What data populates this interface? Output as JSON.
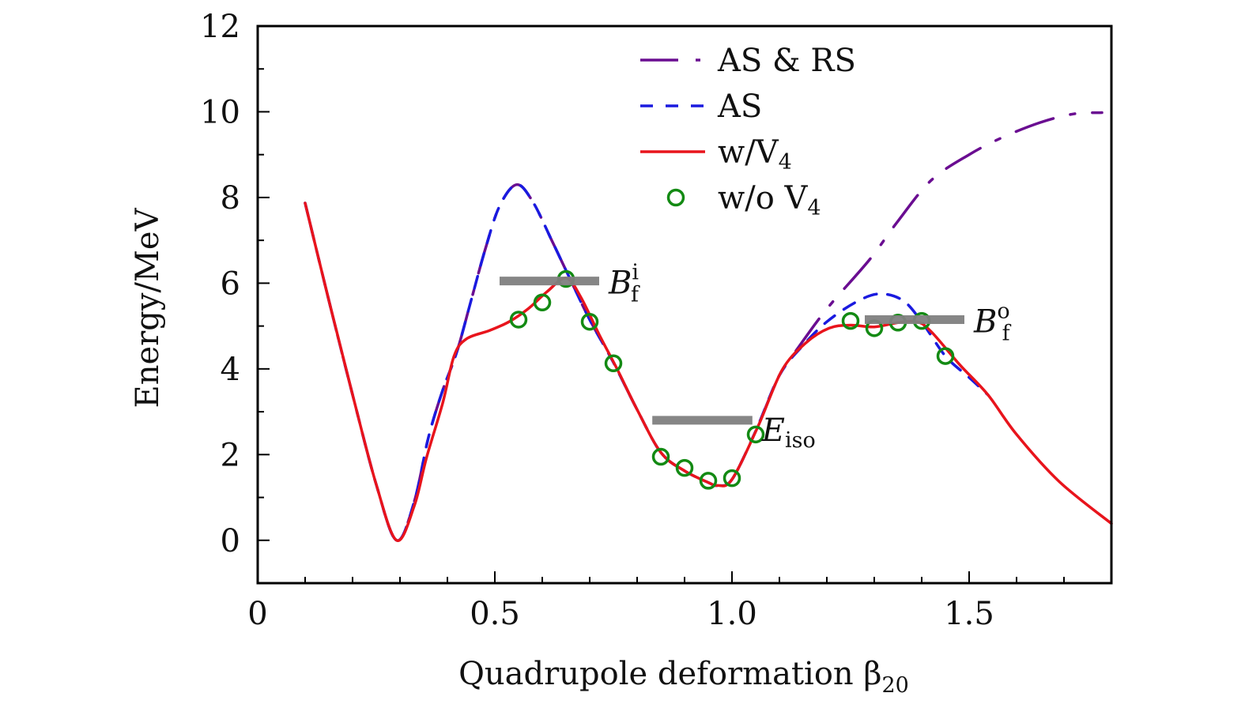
{
  "chart_data": {
    "type": "line",
    "title": "",
    "xlabel": "Quadrupole deformation β",
    "xlabel_subscript": "20",
    "ylabel": "Energy/MeV",
    "xlim": [
      0,
      1.8
    ],
    "ylim": [
      -1,
      12
    ],
    "xticks": [
      0,
      0.5,
      1.0,
      1.5
    ],
    "xtick_labels": [
      "0",
      "0.5",
      "1.0",
      "1.5"
    ],
    "x_minor_step": 0.1,
    "yticks": [
      0,
      2,
      4,
      6,
      8,
      10,
      12
    ],
    "ytick_labels": [
      "0",
      "2",
      "4",
      "6",
      "8",
      "10",
      "12"
    ],
    "y_minor_step": 1,
    "grid": false,
    "legend_position": "top-right",
    "series": [
      {
        "name": "AS & RS",
        "style": "dash-dot",
        "color": "#6a0d91",
        "points": [
          [
            0.1,
            7.87
          ],
          [
            0.15,
            5.6
          ],
          [
            0.2,
            3.4
          ],
          [
            0.25,
            1.3
          ],
          [
            0.293,
            0.0
          ],
          [
            0.33,
            0.9
          ],
          [
            0.36,
            2.4
          ],
          [
            0.39,
            3.5
          ],
          [
            0.42,
            4.4
          ],
          [
            0.45,
            5.6
          ],
          [
            0.48,
            6.8
          ],
          [
            0.51,
            7.8
          ],
          [
            0.546,
            8.3
          ],
          [
            0.58,
            7.9
          ],
          [
            0.62,
            7.0
          ],
          [
            0.65,
            6.3
          ],
          [
            0.7,
            5.15
          ],
          [
            0.75,
            4.15
          ],
          [
            0.8,
            3.05
          ],
          [
            0.85,
            2.05
          ],
          [
            0.9,
            1.62
          ],
          [
            0.95,
            1.35
          ],
          [
            0.97,
            1.28
          ],
          [
            1.0,
            1.42
          ],
          [
            1.05,
            2.55
          ],
          [
            1.1,
            3.85
          ],
          [
            1.14,
            4.5
          ],
          [
            1.2,
            5.4
          ],
          [
            1.29,
            6.55
          ],
          [
            1.35,
            7.45
          ],
          [
            1.42,
            8.4
          ],
          [
            1.5,
            9.0
          ],
          [
            1.57,
            9.4
          ],
          [
            1.65,
            9.75
          ],
          [
            1.72,
            9.95
          ],
          [
            1.78,
            9.98
          ]
        ]
      },
      {
        "name": "AS",
        "style": "dashed",
        "color": "#1a1adf",
        "points": [
          [
            0.1,
            7.87
          ],
          [
            0.15,
            5.6
          ],
          [
            0.2,
            3.4
          ],
          [
            0.25,
            1.3
          ],
          [
            0.293,
            0.0
          ],
          [
            0.33,
            0.9
          ],
          [
            0.36,
            2.4
          ],
          [
            0.39,
            3.5
          ],
          [
            0.42,
            4.4
          ],
          [
            0.45,
            5.6
          ],
          [
            0.48,
            6.8
          ],
          [
            0.51,
            7.8
          ],
          [
            0.546,
            8.3
          ],
          [
            0.58,
            7.9
          ],
          [
            0.62,
            7.0
          ],
          [
            0.65,
            6.3
          ],
          [
            0.7,
            5.15
          ],
          [
            0.75,
            4.15
          ],
          [
            0.8,
            3.05
          ],
          [
            0.85,
            2.05
          ],
          [
            0.9,
            1.62
          ],
          [
            0.95,
            1.35
          ],
          [
            0.97,
            1.28
          ],
          [
            1.0,
            1.42
          ],
          [
            1.05,
            2.55
          ],
          [
            1.1,
            3.85
          ],
          [
            1.15,
            4.55
          ],
          [
            1.2,
            5.1
          ],
          [
            1.26,
            5.55
          ],
          [
            1.31,
            5.75
          ],
          [
            1.36,
            5.6
          ],
          [
            1.4,
            5.1
          ],
          [
            1.45,
            4.3
          ],
          [
            1.5,
            3.8
          ],
          [
            1.54,
            3.39
          ]
        ]
      },
      {
        "name": "w/V4",
        "style": "solid",
        "color": "#e8141c",
        "points": [
          [
            0.1,
            7.87
          ],
          [
            0.15,
            5.6
          ],
          [
            0.2,
            3.4
          ],
          [
            0.25,
            1.3
          ],
          [
            0.293,
            0.0
          ],
          [
            0.33,
            0.8
          ],
          [
            0.356,
            1.93
          ],
          [
            0.39,
            3.2
          ],
          [
            0.414,
            4.3
          ],
          [
            0.44,
            4.7
          ],
          [
            0.49,
            4.9
          ],
          [
            0.53,
            5.1
          ],
          [
            0.57,
            5.4
          ],
          [
            0.61,
            5.8
          ],
          [
            0.65,
            6.12
          ],
          [
            0.68,
            5.7
          ],
          [
            0.72,
            4.8
          ],
          [
            0.76,
            3.95
          ],
          [
            0.8,
            3.05
          ],
          [
            0.85,
            2.05
          ],
          [
            0.9,
            1.62
          ],
          [
            0.95,
            1.35
          ],
          [
            0.97,
            1.28
          ],
          [
            1.0,
            1.42
          ],
          [
            1.055,
            2.66
          ],
          [
            1.105,
            3.96
          ],
          [
            1.155,
            4.6
          ],
          [
            1.205,
            4.95
          ],
          [
            1.25,
            5.02
          ],
          [
            1.3,
            4.98
          ],
          [
            1.35,
            5.08
          ],
          [
            1.39,
            5.1
          ],
          [
            1.42,
            4.87
          ],
          [
            1.48,
            4.1
          ],
          [
            1.54,
            3.39
          ],
          [
            1.6,
            2.47
          ],
          [
            1.69,
            1.37
          ],
          [
            1.8,
            0.39
          ]
        ]
      },
      {
        "name": "w/o V4",
        "style": "markers",
        "color": "#138a13",
        "points": [
          [
            0.55,
            5.15
          ],
          [
            0.6,
            5.55
          ],
          [
            0.65,
            6.1
          ],
          [
            0.7,
            5.1
          ],
          [
            0.75,
            4.13
          ],
          [
            0.85,
            1.95
          ],
          [
            0.9,
            1.69
          ],
          [
            0.95,
            1.39
          ],
          [
            1.0,
            1.45
          ],
          [
            1.05,
            2.47
          ],
          [
            1.25,
            5.12
          ],
          [
            1.3,
            4.95
          ],
          [
            1.35,
            5.08
          ],
          [
            1.4,
            5.12
          ],
          [
            1.45,
            4.3
          ]
        ]
      }
    ],
    "legend": [
      {
        "label": "AS & RS",
        "style": "dash-dot",
        "color": "#6a0d91"
      },
      {
        "label": "AS",
        "style": "dashed",
        "color": "#1a1adf"
      },
      {
        "label": "w/V",
        "label_sub": "4",
        "style": "solid",
        "color": "#e8141c"
      },
      {
        "label": "w/o V",
        "label_sub": "4",
        "style": "markers",
        "color": "#138a13"
      }
    ],
    "levels": [
      {
        "name": "B_f^i",
        "main": "B",
        "sub": "f",
        "sup": "i",
        "x": [
          0.51,
          0.72
        ],
        "y": 6.05,
        "color": "#808080"
      },
      {
        "name": "E_iso",
        "main": "E",
        "sub": "iso",
        "sup": "",
        "x": [
          0.832,
          1.043
        ],
        "y": 2.8,
        "color": "#808080"
      },
      {
        "name": "B_f^o",
        "main": "B",
        "sub": "f",
        "sup": "o",
        "x": [
          1.28,
          1.49
        ],
        "y": 5.15,
        "color": "#808080"
      }
    ]
  }
}
